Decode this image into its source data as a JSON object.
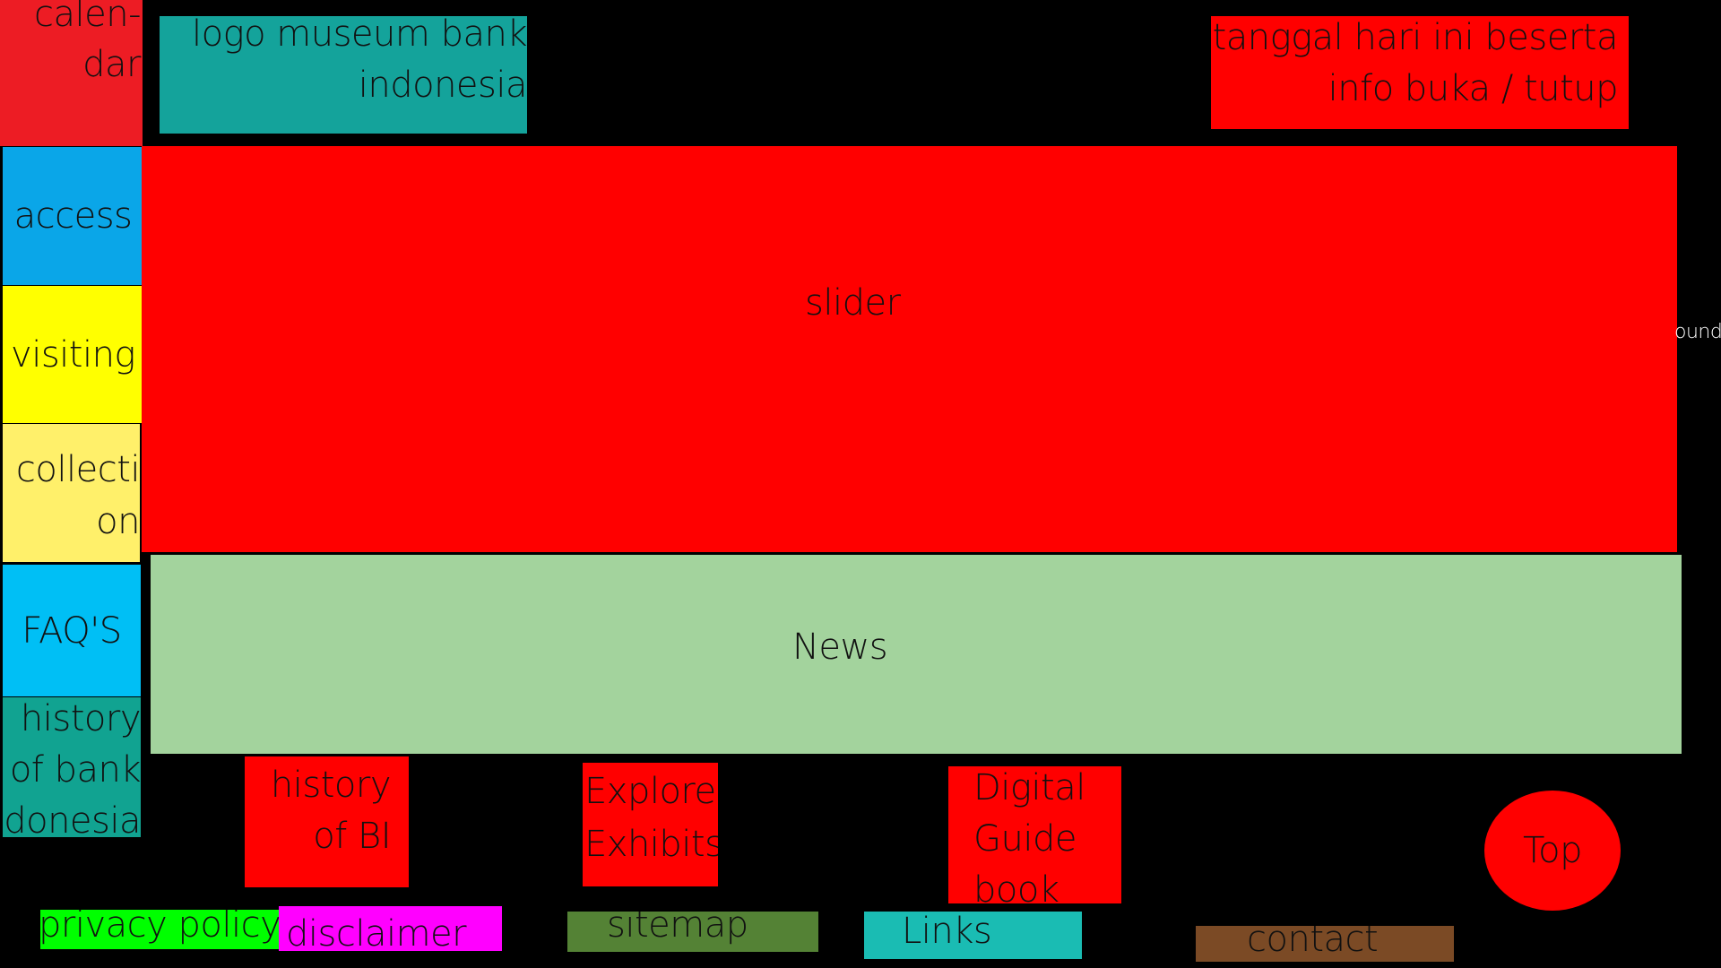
{
  "header": {
    "calendar_label": "calen-\ndar",
    "logo_label": "logo museum bank\nindonesia",
    "date_info_label": "tanggal hari ini beserta\ninfo buka / tutup"
  },
  "sidebar": {
    "items": [
      {
        "label": "access",
        "color": "#0aa6e8"
      },
      {
        "label": "visiting",
        "color": "#ffff00"
      },
      {
        "label": "collecti\non",
        "color": "#fff06a"
      },
      {
        "label": "FAQ'S",
        "color": "#00bff5"
      },
      {
        "label": "history\nof bank\ndonesia",
        "color": "#11a391"
      }
    ]
  },
  "main": {
    "slider_label": "slider",
    "news_label": "News",
    "side_note": "ound"
  },
  "features": {
    "items": [
      {
        "label": "history\nof BI"
      },
      {
        "label": "Explore\nExhibits"
      },
      {
        "label": "Digital\nGuide\nbook"
      }
    ],
    "top_label": "Top"
  },
  "footer": {
    "privacy_label": "privacy policy",
    "disclaimer_label": "disclaimer",
    "sitemap_label": "sitemap",
    "links_label": "Links",
    "contact_label": "contact"
  },
  "colors": {
    "background": "#000000",
    "red": "#ff0000",
    "calendar": "#ed1c24",
    "logo": "#14a39b",
    "news": "#a3d39d",
    "privacy": "#00ff00",
    "disclaimer": "#ff00ff",
    "sitemap": "#548235",
    "links": "#1abcb3",
    "contact": "#7b4a25"
  }
}
